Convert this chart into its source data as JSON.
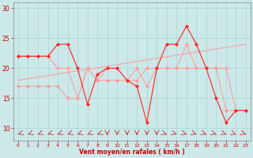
{
  "x_values": [
    0,
    1,
    2,
    3,
    4,
    5,
    6,
    7,
    8,
    9,
    10,
    11,
    12,
    13,
    14,
    15,
    16,
    17,
    18,
    19,
    20,
    21,
    22,
    23
  ],
  "background_color": "#cce8e8",
  "grid_color": "#aad4d4",
  "line_dark": "#ff2222",
  "line_light": "#ff9999",
  "xlabel": "Vent moyen/en rafales ( km/h )",
  "ylim": [
    8,
    31
  ],
  "xlim": [
    -0.5,
    23.5
  ],
  "yticks": [
    10,
    15,
    20,
    25,
    30
  ],
  "xtick_labels": [
    "0",
    "1",
    "2",
    "3",
    "4",
    "5",
    "6",
    "7",
    "8",
    "9",
    "10",
    "11",
    "12",
    "13",
    "14",
    "15",
    "16",
    "17",
    "18",
    "19",
    "20",
    "21",
    "22",
    "23"
  ],
  "series_rafales": [
    22,
    22,
    22,
    22,
    24,
    24,
    20,
    14,
    19,
    20,
    20,
    18,
    17,
    11,
    20,
    24,
    24,
    27,
    24,
    20,
    15,
    11,
    13,
    13
  ],
  "series_moyen": [
    22,
    22,
    22,
    22,
    20,
    20,
    15,
    20,
    18,
    20,
    20,
    18,
    20,
    17,
    20,
    20,
    20,
    24,
    20,
    20,
    20,
    20,
    13,
    13
  ],
  "series_trend": [
    17,
    17,
    17,
    17,
    17,
    15,
    15,
    20,
    18,
    18,
    18,
    18,
    18,
    20,
    20,
    20,
    20,
    20,
    20,
    20,
    20,
    13,
    13,
    13
  ],
  "arrow_angles": [
    225,
    225,
    225,
    225,
    225,
    225,
    225,
    225,
    225,
    270,
    270,
    270,
    270,
    270,
    270,
    315,
    315,
    315,
    315,
    315,
    315,
    315,
    315,
    315
  ]
}
